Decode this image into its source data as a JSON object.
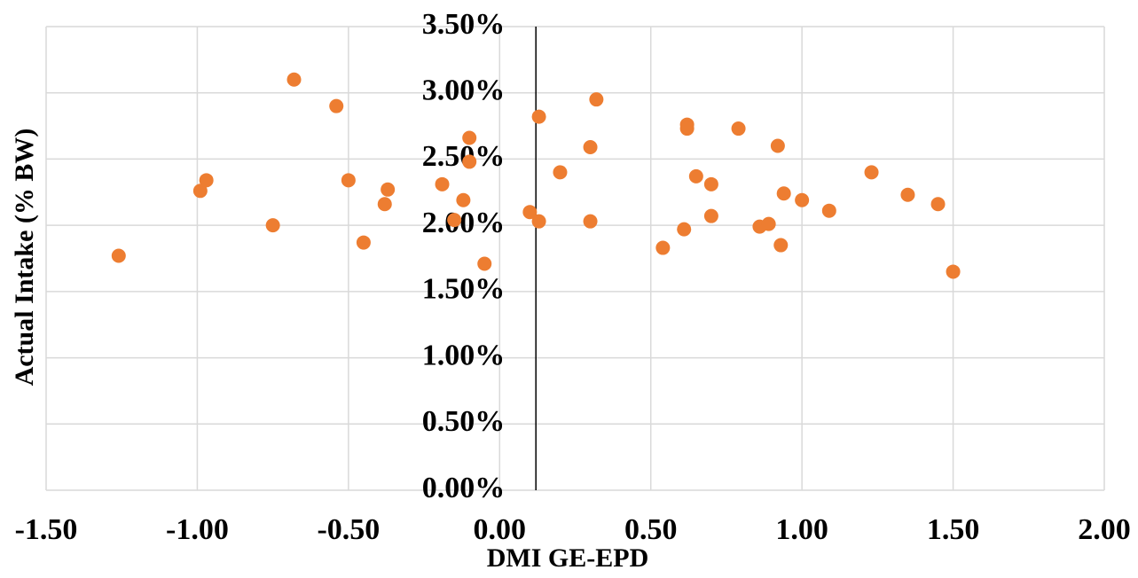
{
  "chart_data": {
    "type": "scatter",
    "x_label": "DMI GE-EPD",
    "y_label": "Actual Intake (% BW)",
    "color": "#ed7d31",
    "grid": true,
    "y_axis_crossing_x": 0.12,
    "xlim": [
      -1.5,
      2.0
    ],
    "ylim": [
      0,
      3.5
    ],
    "xticks": [
      {
        "value": -1.5,
        "label": "-1.50"
      },
      {
        "value": -1.0,
        "label": "-1.00"
      },
      {
        "value": -0.5,
        "label": "-0.50"
      },
      {
        "value": 0,
        "label": "0.00"
      },
      {
        "value": 0.5,
        "label": "0.50"
      },
      {
        "value": 1.0,
        "label": "1.00"
      },
      {
        "value": 1.5,
        "label": "1.50"
      },
      {
        "value": 2.0,
        "label": "2.00"
      }
    ],
    "yticks": [
      {
        "value": 0,
        "label": "0.00%"
      },
      {
        "value": 0.5,
        "label": "0.50%"
      },
      {
        "value": 1.0,
        "label": "1.00%"
      },
      {
        "value": 1.5,
        "label": "1.50%"
      },
      {
        "value": 2.0,
        "label": "2.00%"
      },
      {
        "value": 2.5,
        "label": "2.50%"
      },
      {
        "value": 3.0,
        "label": "3.00%"
      },
      {
        "value": 3.5,
        "label": "3.50%"
      }
    ],
    "x": [
      -1.26,
      -0.99,
      -0.97,
      -0.75,
      -0.68,
      -0.54,
      -0.5,
      -0.45,
      -0.38,
      -0.37,
      -0.19,
      -0.15,
      -0.12,
      -0.1,
      -0.1,
      -0.05,
      0.1,
      0.13,
      0.13,
      0.2,
      0.3,
      0.3,
      0.32,
      0.54,
      0.61,
      0.62,
      0.62,
      0.65,
      0.7,
      0.7,
      0.79,
      0.86,
      0.89,
      0.92,
      0.93,
      0.94,
      1.0,
      1.09,
      1.23,
      1.35,
      1.45,
      1.5
    ],
    "values": [
      1.77,
      2.26,
      2.34,
      2.0,
      3.1,
      2.9,
      2.34,
      1.87,
      2.16,
      2.27,
      2.31,
      2.04,
      2.19,
      2.66,
      2.48,
      1.71,
      2.1,
      2.03,
      2.82,
      2.4,
      2.59,
      2.03,
      2.95,
      1.83,
      1.97,
      2.76,
      2.73,
      2.37,
      2.31,
      2.07,
      2.73,
      1.99,
      2.01,
      2.6,
      1.85,
      2.24,
      2.19,
      2.11,
      2.4,
      2.23,
      2.16,
      1.65
    ]
  }
}
